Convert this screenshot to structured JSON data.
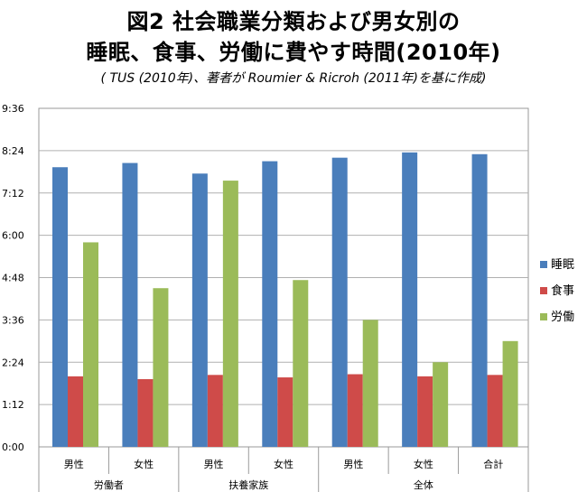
{
  "title_line1": "図2 社会職業分類および男女別の",
  "title_line2": "睡眠、食事、労働に費やす時間(2010年)",
  "subtitle": "( TUS (2010年)、著者が Roumier & Ricroh (2011年)を基に作成)",
  "chart_data": {
    "type": "bar",
    "title": "図2 社会職業分類および男女別の 睡眠、食事、労働に費やす時間(2010年)",
    "subtitle": "( TUS (2010年)、著者が Roumier & Ricroh (2011年)を基に作成)",
    "xlabel": "",
    "ylabel": "",
    "y_unit": "hours (h:mm)",
    "ylim": [
      0,
      9.6
    ],
    "yticks": [
      "0:00",
      "1:12",
      "2:24",
      "3:36",
      "4:48",
      "6:00",
      "7:12",
      "8:24",
      "9:36"
    ],
    "grid": "horizontal",
    "legend_position": "right",
    "categories": [
      "男性",
      "女性",
      "男性",
      "女性",
      "男性",
      "女性",
      "合計"
    ],
    "groups": [
      {
        "label": "労働者",
        "span": 2
      },
      {
        "label": "扶養家族",
        "span": 2
      },
      {
        "label": "全体",
        "span": 3
      }
    ],
    "series": [
      {
        "name": "睡眠",
        "color": "#4a7ebb",
        "values": [
          7.93,
          8.05,
          7.75,
          8.1,
          8.2,
          8.35,
          8.3
        ]
      },
      {
        "name": "食事",
        "color": "#cf4b49",
        "values": [
          2.0,
          1.92,
          2.04,
          1.97,
          2.06,
          2.0,
          2.04
        ]
      },
      {
        "name": "労働",
        "color": "#9bbb59",
        "values": [
          5.8,
          4.5,
          7.55,
          4.73,
          3.6,
          2.4,
          3.0
        ]
      }
    ]
  }
}
